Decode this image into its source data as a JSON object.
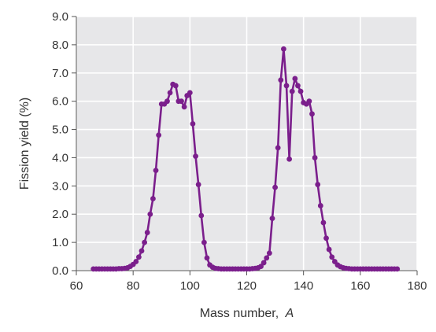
{
  "chart_data": {
    "type": "line",
    "xlabel": "Mass number,",
    "xlabel_italic": "A",
    "ylabel": "Fission yield (%)",
    "xlim": [
      60,
      180
    ],
    "ylim": [
      0,
      9
    ],
    "x_ticks": [
      60,
      80,
      100,
      120,
      140,
      160,
      180
    ],
    "x_tick_labels": [
      "60",
      "80",
      "100",
      "120",
      "140",
      "160",
      "180"
    ],
    "y_ticks": [
      0,
      1,
      2,
      3,
      4,
      5,
      6,
      7,
      8,
      9
    ],
    "y_tick_labels": [
      "0.0",
      "1.0",
      "2.0",
      "3.0",
      "4.0",
      "5.0",
      "6.0",
      "7.0",
      "8.0",
      "9.0"
    ],
    "grid": true,
    "colors": {
      "series": "#7b1f8c",
      "plot_bg": "#e7e7e9",
      "grid": "#ffffff"
    },
    "series": [
      {
        "x": [
          66,
          67,
          68,
          69,
          70,
          71,
          72,
          73,
          74,
          75,
          76,
          77,
          78,
          79,
          80,
          81,
          82,
          83,
          84,
          85,
          86,
          87,
          88,
          89,
          90,
          91,
          92,
          93,
          94,
          95,
          96,
          97,
          98,
          99,
          100,
          101,
          102,
          103,
          104,
          105,
          106,
          107,
          108,
          109,
          110,
          111,
          112,
          113,
          114,
          115,
          116,
          117,
          118,
          119,
          120,
          121,
          122,
          123,
          124,
          125,
          126,
          127,
          128,
          129,
          130,
          131,
          132,
          133,
          134,
          135,
          136,
          137,
          138,
          139,
          140,
          141,
          142,
          143,
          144,
          145,
          146,
          147,
          148,
          149,
          150,
          151,
          152,
          153,
          154,
          155,
          156,
          157,
          158,
          159,
          160,
          161,
          162,
          163,
          164,
          165,
          166,
          167,
          168,
          169,
          170,
          171,
          172,
          173
        ],
        "values": [
          0.06,
          0.06,
          0.06,
          0.06,
          0.06,
          0.06,
          0.06,
          0.06,
          0.06,
          0.07,
          0.07,
          0.08,
          0.1,
          0.15,
          0.22,
          0.32,
          0.48,
          0.7,
          1.0,
          1.35,
          2.0,
          2.55,
          3.55,
          4.8,
          5.9,
          5.9,
          6.0,
          6.3,
          6.6,
          6.55,
          6.0,
          6.0,
          5.8,
          6.2,
          6.3,
          5.2,
          4.05,
          3.05,
          1.95,
          1.0,
          0.45,
          0.2,
          0.12,
          0.08,
          0.07,
          0.06,
          0.06,
          0.06,
          0.06,
          0.06,
          0.06,
          0.06,
          0.06,
          0.06,
          0.06,
          0.06,
          0.07,
          0.08,
          0.1,
          0.15,
          0.28,
          0.45,
          0.62,
          1.85,
          2.95,
          4.35,
          6.75,
          7.85,
          6.55,
          3.95,
          6.35,
          6.8,
          6.55,
          6.35,
          5.95,
          5.9,
          6.0,
          5.55,
          4.0,
          3.05,
          2.3,
          1.7,
          1.15,
          0.75,
          0.48,
          0.32,
          0.2,
          0.14,
          0.1,
          0.08,
          0.07,
          0.06,
          0.06,
          0.06,
          0.06,
          0.06,
          0.06,
          0.06,
          0.06,
          0.06,
          0.06,
          0.06,
          0.06,
          0.06,
          0.06,
          0.06,
          0.06,
          0.06
        ]
      }
    ]
  }
}
